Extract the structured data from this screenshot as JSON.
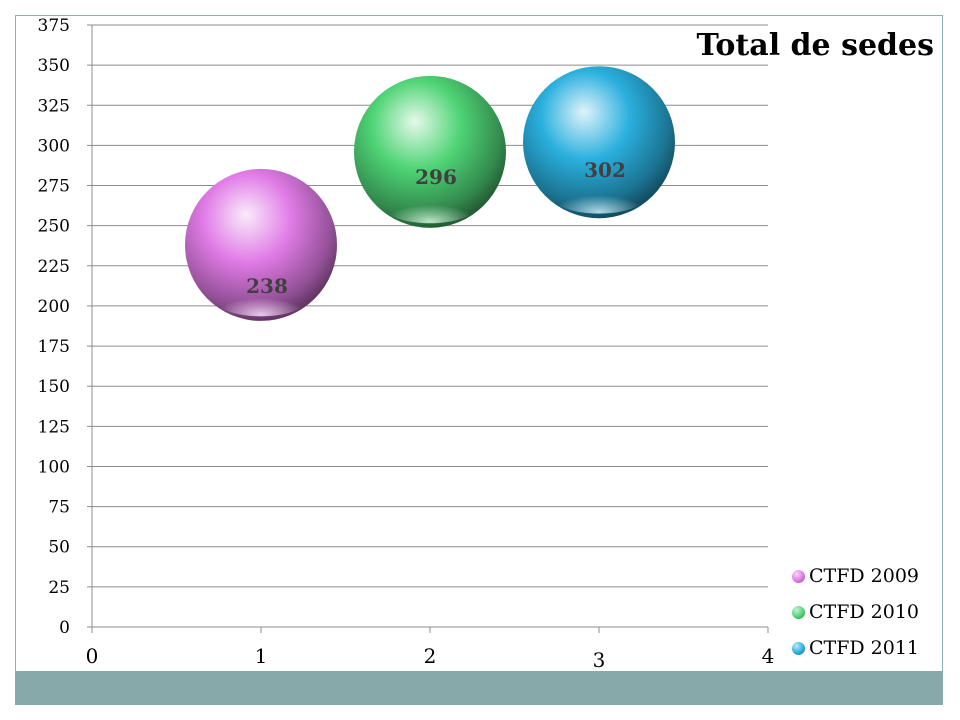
{
  "chart_data": {
    "type": "scatter",
    "title": "Total de sedes",
    "xlabel": "",
    "ylabel": "",
    "xlim": [
      0,
      4
    ],
    "ylim": [
      0,
      375
    ],
    "x_ticks": [
      "0",
      "1",
      "2",
      "3",
      "4"
    ],
    "y_ticks": [
      "0",
      "25",
      "50",
      "75",
      "100",
      "125",
      "150",
      "175",
      "200",
      "225",
      "250",
      "275",
      "300",
      "325",
      "350",
      "375"
    ],
    "grid": true,
    "legend_position": "bottom-right",
    "series": [
      {
        "name": "CTFD 2009",
        "x": 1,
        "y": 238,
        "label": "238",
        "color": "#e07be6"
      },
      {
        "name": "CTFD 2010",
        "x": 2,
        "y": 296,
        "label": "296",
        "color": "#4fd476"
      },
      {
        "name": "CTFD 2011",
        "x": 3,
        "y": 302,
        "label": "302",
        "color": "#2ab0de"
      }
    ]
  }
}
